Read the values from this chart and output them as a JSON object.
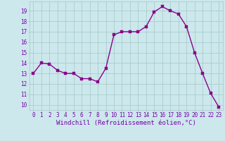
{
  "x": [
    0,
    1,
    2,
    3,
    4,
    5,
    6,
    7,
    8,
    9,
    10,
    11,
    12,
    13,
    14,
    15,
    16,
    17,
    18,
    19,
    20,
    21,
    22,
    23
  ],
  "y": [
    13,
    14,
    13.9,
    13.3,
    13,
    13,
    12.5,
    12.5,
    12.2,
    13.5,
    16.7,
    17,
    17,
    17,
    17.5,
    18.9,
    19.4,
    19,
    18.7,
    17.5,
    15,
    13,
    11.1,
    9.8
  ],
  "line_color": "#8b008b",
  "marker_color": "#8b008b",
  "bg_color": "#cce8ec",
  "grid_color": "#aacccc",
  "xlabel": "Windchill (Refroidissement éolien,°C)",
  "xlabel_color": "#7700aa",
  "ylim_min": 9.5,
  "ylim_max": 19.9,
  "xlim_min": -0.5,
  "xlim_max": 23.5,
  "yticks": [
    10,
    11,
    12,
    13,
    14,
    15,
    16,
    17,
    18,
    19
  ],
  "xticks": [
    0,
    1,
    2,
    3,
    4,
    5,
    6,
    7,
    8,
    9,
    10,
    11,
    12,
    13,
    14,
    15,
    16,
    17,
    18,
    19,
    20,
    21,
    22,
    23
  ],
  "tick_fontsize": 5.5,
  "xlabel_fontsize": 6.5,
  "line_width": 1.0,
  "marker_size": 2.5
}
